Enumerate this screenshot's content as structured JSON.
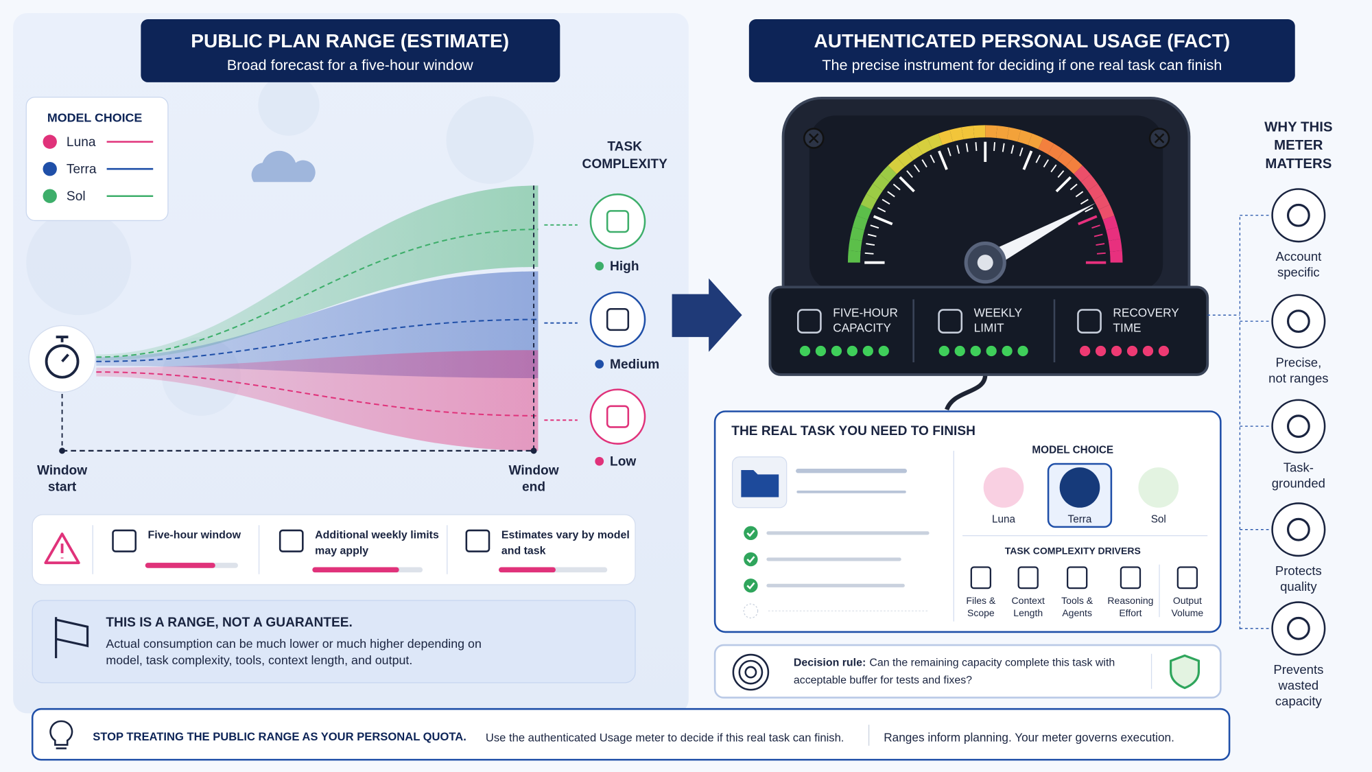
{
  "left": {
    "title": "PUBLIC PLAN RANGE (ESTIMATE)",
    "subtitle": "Broad forecast for a five-hour window",
    "legend": {
      "title": "MODEL CHOICE",
      "items": [
        "Luna",
        "Terra",
        "Sol"
      ]
    },
    "complexity_title": [
      "TASK",
      "COMPLEXITY"
    ],
    "levels": [
      "High",
      "Medium",
      "Low"
    ],
    "window_start": [
      "Window",
      "start"
    ],
    "window_end": [
      "Window",
      "end"
    ],
    "notes": [
      [
        "Five-hour window"
      ],
      [
        "Additional weekly limits",
        "may apply"
      ],
      [
        "Estimates vary by model",
        "and task"
      ]
    ],
    "warning": {
      "title": "THIS IS A RANGE, NOT A GUARANTEE.",
      "body": [
        "Actual consumption can be much lower or much higher depending on",
        "model, task complexity, tools, context length, and output."
      ]
    }
  },
  "right": {
    "title": "AUTHENTICATED PERSONAL USAGE (FACT)",
    "subtitle": "The precise instrument for deciding if one real task can finish",
    "meters": [
      [
        "FIVE-HOUR",
        "CAPACITY"
      ],
      [
        "WEEKLY",
        "LIMIT"
      ],
      [
        "RECOVERY",
        "TIME"
      ]
    ],
    "task": {
      "title": "THE REAL TASK YOU NEED TO FINISH",
      "model_choice": "MODEL CHOICE",
      "models": [
        "Luna",
        "Terra",
        "Sol"
      ],
      "drivers_title": "TASK COMPLEXITY DRIVERS",
      "drivers": [
        [
          "Files &",
          "Scope"
        ],
        [
          "Context",
          "Length"
        ],
        [
          "Tools &",
          "Agents"
        ],
        [
          "Reasoning",
          "Effort"
        ],
        [
          "Output",
          "Volume"
        ]
      ]
    },
    "decision": {
      "label": "Decision rule:",
      "text": [
        "Can the remaining capacity complete this task with",
        "acceptable buffer for tests and fixes?"
      ]
    },
    "why": {
      "title": [
        "WHY THIS",
        "METER",
        "MATTERS"
      ],
      "items": [
        [
          "Account",
          "specific"
        ],
        [
          "Precise,",
          "not ranges"
        ],
        [
          "Task-",
          "grounded"
        ],
        [
          "Protects",
          "quality"
        ],
        [
          "Prevents",
          "wasted",
          "capacity"
        ]
      ]
    }
  },
  "footer": {
    "headline": "STOP TREATING THE PUBLIC RANGE AS YOUR PERSONAL QUOTA.",
    "text": "Use the authenticated Usage meter to decide if this real task can finish.",
    "note": "Ranges inform planning. Your meter governs execution."
  }
}
